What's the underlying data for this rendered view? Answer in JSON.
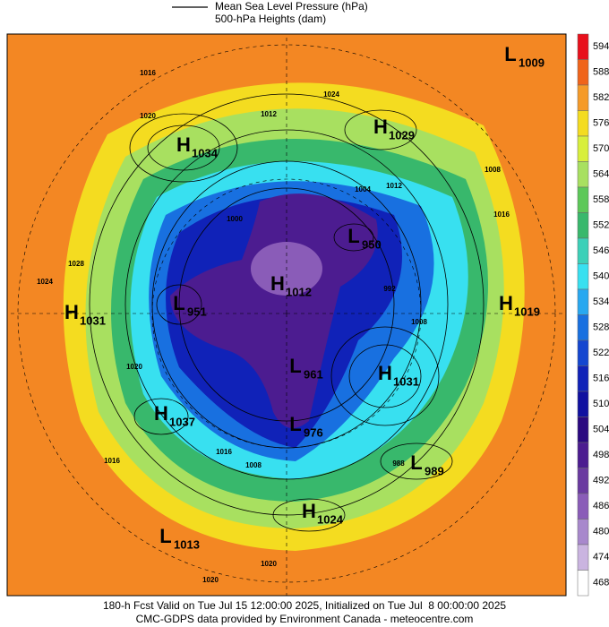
{
  "legend": {
    "line_label": "Mean Sea Level Pressure (hPa)",
    "fill_label": "500-hPa Heights (dam)"
  },
  "colorbar": {
    "levels": [
      594,
      588,
      582,
      576,
      570,
      564,
      558,
      552,
      546,
      540,
      534,
      528,
      522,
      516,
      510,
      504,
      498,
      492,
      486,
      480,
      474,
      468
    ],
    "colors": [
      "#e8101c",
      "#f0641a",
      "#f59a28",
      "#f4dc20",
      "#d8ef3c",
      "#a8e060",
      "#5cc858",
      "#38b86c",
      "#3cd0b8",
      "#38e0f0",
      "#28a8f0",
      "#1870e0",
      "#1446d0",
      "#1022b8",
      "#1010a0",
      "#2a0880",
      "#4c1c90",
      "#6a3aa0",
      "#8a5cb8",
      "#a888cc",
      "#cab4e0",
      "#ffffff"
    ]
  },
  "centers": [
    {
      "type": "L",
      "value": 1009
    },
    {
      "type": "H",
      "value": 1029
    },
    {
      "type": "H",
      "value": 1034
    },
    {
      "type": "L",
      "value": 950
    },
    {
      "type": "H",
      "value": 1019
    },
    {
      "type": "H",
      "value": 1031
    },
    {
      "type": "L",
      "value": 951
    },
    {
      "type": "H",
      "value": 1012
    },
    {
      "type": "L",
      "value": 961
    },
    {
      "type": "H",
      "value": 1031
    },
    {
      "type": "H",
      "value": 1037
    },
    {
      "type": "L",
      "value": 976
    },
    {
      "type": "L",
      "value": 989
    },
    {
      "type": "H",
      "value": 1024
    },
    {
      "type": "L",
      "value": 1013
    }
  ],
  "isobar_labels": [
    1016,
    1024,
    1020,
    1012,
    1028,
    1024,
    1020,
    1016,
    1004,
    1008,
    1012,
    1000,
    992,
    988,
    1008,
    1008,
    1016,
    1020,
    1020,
    1016
  ],
  "footer": {
    "line1": "180-h Fcst Valid on Tue Jul 15 12:00:00 2025, Initialized on Tue Jul  8 00:00:00 2025",
    "line2": "CMC-GDPS data provided by Environment Canada - meteocentre.com"
  }
}
